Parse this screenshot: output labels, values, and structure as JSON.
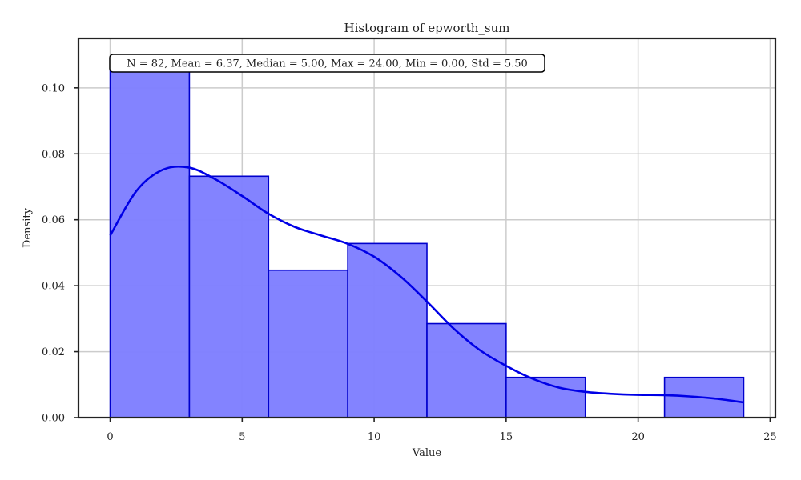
{
  "chart_data": {
    "type": "bar",
    "title": "Histogram of epworth_sum",
    "xlabel": "Value",
    "ylabel": "Density",
    "xlim": [
      -1.2,
      25.2
    ],
    "ylim": [
      0,
      0.115
    ],
    "xticks": [
      0,
      5,
      10,
      15,
      20,
      25
    ],
    "yticks": [
      0.0,
      0.02,
      0.04,
      0.06,
      0.08,
      0.1
    ],
    "ytick_labels": [
      "0.00",
      "0.02",
      "0.04",
      "0.06",
      "0.08",
      "0.10"
    ],
    "grid": true,
    "bins": [
      {
        "x0": 0,
        "x1": 3,
        "density": 0.1057
      },
      {
        "x0": 3,
        "x1": 6,
        "density": 0.0732
      },
      {
        "x0": 6,
        "x1": 9,
        "density": 0.0447
      },
      {
        "x0": 9,
        "x1": 12,
        "density": 0.0528
      },
      {
        "x0": 12,
        "x1": 15,
        "density": 0.0285
      },
      {
        "x0": 15,
        "x1": 18,
        "density": 0.0122
      },
      {
        "x0": 18,
        "x1": 21,
        "density": 0.0
      },
      {
        "x0": 21,
        "x1": 24,
        "density": 0.0122
      }
    ],
    "kde": {
      "x": [
        0,
        1,
        2,
        3,
        4,
        5,
        6,
        7,
        8,
        9,
        10,
        11,
        12,
        13,
        14,
        15,
        16,
        17,
        18,
        19,
        20,
        21,
        22,
        23,
        24
      ],
      "y": [
        0.0552,
        0.0688,
        0.0752,
        0.0758,
        0.0722,
        0.0672,
        0.0618,
        0.0578,
        0.0552,
        0.0527,
        0.0488,
        0.0428,
        0.0352,
        0.0271,
        0.0205,
        0.0157,
        0.0118,
        0.0091,
        0.0078,
        0.0072,
        0.0069,
        0.0068,
        0.0064,
        0.0057,
        0.0046
      ]
    },
    "stats_text": "N = 82, Mean = 6.37, Median = 5.00, Max = 24.00, Min = 0.00, Std = 5.50",
    "colors": {
      "bar_fill": "#7f7fff",
      "bar_edge": "#0000cc",
      "kde_line": "#0000e6",
      "grid": "#cccccc",
      "axes": "#222222"
    }
  }
}
